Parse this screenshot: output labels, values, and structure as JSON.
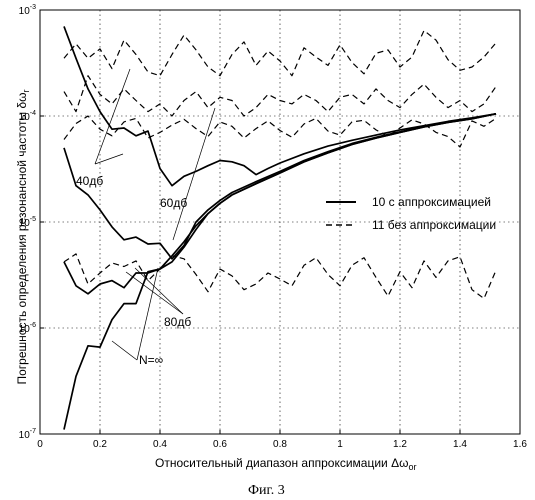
{
  "chart_data": {
    "type": "line",
    "xlabel": "Относительный диапазон аппроксимации Δω",
    "xlabel_sub": "or",
    "ylabel": "Погрешность определения резонансной частоты δω",
    "ylabel_sub": "r",
    "caption": "Фиг. 3",
    "xlim": [
      0,
      1.6
    ],
    "ylim": [
      1e-07,
      0.001
    ],
    "y_scale": "log",
    "grid": true,
    "x_ticks": [
      "0",
      "0.2",
      "0.4",
      "0.6",
      "0.8",
      "1",
      "1.2",
      "1.4",
      "1.6"
    ],
    "y_ticks": [
      {
        "base": "10",
        "exp": "-7"
      },
      {
        "base": "10",
        "exp": "-6"
      },
      {
        "base": "10",
        "exp": "-5"
      },
      {
        "base": "10",
        "exp": "-4"
      },
      {
        "base": "10",
        "exp": "-3"
      }
    ],
    "legend": [
      {
        "label": "10 с аппроксимацией",
        "style": "solid"
      },
      {
        "label": "11 без аппроксимации",
        "style": "dashed"
      }
    ],
    "legend_position": "right",
    "annotations": [
      "40дб",
      "60дб",
      "80дб",
      "N=∞"
    ],
    "series": [
      {
        "style": "solid",
        "x": [
          0.08,
          0.12,
          0.16,
          0.2,
          0.24,
          0.28,
          0.32,
          0.36,
          0.4,
          0.44,
          0.48,
          0.52,
          0.56,
          0.6,
          0.64,
          0.68,
          0.72,
          0.76,
          0.8,
          0.88,
          0.96,
          1.04,
          1.12,
          1.2,
          1.28,
          1.36,
          1.44,
          1.52
        ],
        "y": [
          0.0007,
          0.00035,
          0.00018,
          0.00011,
          7.5e-05,
          7.7e-05,
          6.5e-05,
          7.2e-05,
          3.2e-05,
          2.2e-05,
          2.7e-05,
          3e-05,
          3.4e-05,
          3.8e-05,
          3.7e-05,
          3.4e-05,
          2.8e-05,
          3.2e-05,
          3.6e-05,
          4.4e-05,
          5.2e-05,
          5.9e-05,
          6.6e-05,
          7.4e-05,
          8.1e-05,
          8.9e-05,
          9.6e-05,
          0.000105
        ]
      },
      {
        "style": "solid",
        "x": [
          0.08,
          0.12,
          0.16,
          0.2,
          0.24,
          0.28,
          0.32,
          0.36,
          0.4,
          0.44,
          0.48,
          0.52,
          0.56,
          0.6,
          0.64,
          0.72,
          0.8,
          0.88,
          0.96,
          1.04,
          1.12,
          1.2,
          1.28,
          1.36,
          1.44,
          1.52
        ],
        "y": [
          5e-05,
          2.2e-05,
          1.8e-05,
          1.3e-05,
          9e-06,
          6.8e-06,
          7.2e-06,
          6.2e-06,
          6.3e-06,
          4.5e-06,
          6e-06,
          1e-05,
          1.3e-05,
          1.6e-05,
          1.9e-05,
          2.4e-05,
          3e-05,
          3.8e-05,
          4.6e-05,
          5.5e-05,
          6.3e-05,
          7.1e-05,
          8e-05,
          8.8e-05,
          9.5e-05,
          0.000105
        ]
      },
      {
        "style": "solid",
        "x": [
          0.08,
          0.12,
          0.16,
          0.2,
          0.24,
          0.28,
          0.32,
          0.36,
          0.4,
          0.44,
          0.48,
          0.52,
          0.56,
          0.6,
          0.64,
          0.72,
          0.8,
          0.88,
          0.96,
          1.04,
          1.12,
          1.2,
          1.28,
          1.36,
          1.44,
          1.52
        ],
        "y": [
          4.2e-06,
          2.5e-06,
          2.1e-06,
          2.6e-06,
          2.8e-06,
          2.4e-06,
          3.3e-06,
          3.3e-06,
          3.6e-06,
          4.2e-06,
          5.8e-06,
          8.5e-06,
          1.2e-05,
          1.5e-05,
          1.8e-05,
          2.3e-05,
          2.9e-05,
          3.7e-05,
          4.5e-05,
          5.4e-05,
          6.2e-05,
          7e-05,
          7.9e-05,
          8.7e-05,
          9.4e-05,
          0.000105
        ]
      },
      {
        "style": "solid",
        "x": [
          0.08,
          0.12,
          0.16,
          0.2,
          0.24,
          0.28,
          0.32,
          0.36,
          0.4,
          0.44,
          0.48,
          0.52,
          0.56,
          0.6,
          0.64,
          0.72,
          0.8,
          0.88,
          0.96,
          1.04,
          1.12,
          1.2,
          1.28,
          1.36,
          1.44,
          1.52
        ],
        "y": [
          1.1e-07,
          3.5e-07,
          6.8e-07,
          6.6e-07,
          1.2e-06,
          1.7e-06,
          1.7e-06,
          3.4e-06,
          3.6e-06,
          4.8e-06,
          6.5e-06,
          9.2e-06,
          1.2e-05,
          1.5e-05,
          1.8e-05,
          2.3e-05,
          2.9e-05,
          3.7e-05,
          4.5e-05,
          5.4e-05,
          6.2e-05,
          7e-05,
          7.9e-05,
          8.7e-05,
          9.4e-05,
          0.000105
        ]
      },
      {
        "style": "dashed",
        "x": [
          0.08,
          0.12,
          0.16,
          0.2,
          0.24,
          0.28,
          0.32,
          0.36,
          0.4,
          0.44,
          0.48,
          0.52,
          0.56,
          0.6,
          0.64,
          0.68,
          0.72,
          0.76,
          0.8,
          0.84,
          0.88,
          0.92,
          0.96,
          1.0,
          1.04,
          1.08,
          1.12,
          1.16,
          1.2,
          1.24,
          1.28,
          1.32,
          1.36,
          1.4,
          1.44,
          1.48,
          1.52
        ],
        "y": [
          0.00035,
          0.00048,
          0.00035,
          0.00043,
          0.00028,
          0.00052,
          0.00038,
          0.00026,
          0.00024,
          0.00038,
          0.00058,
          0.00042,
          0.00029,
          0.00024,
          0.00038,
          0.0005,
          0.0003,
          0.00041,
          0.00033,
          0.00024,
          0.00044,
          0.00036,
          0.0003,
          0.00047,
          0.00032,
          0.00025,
          0.00039,
          0.00042,
          0.00029,
          0.00036,
          0.00064,
          0.00052,
          0.00034,
          0.00027,
          0.00029,
          0.00036,
          0.00049
        ]
      },
      {
        "style": "dashed",
        "x": [
          0.08,
          0.12,
          0.16,
          0.2,
          0.24,
          0.28,
          0.32,
          0.36,
          0.4,
          0.44,
          0.48,
          0.52,
          0.56,
          0.6,
          0.64,
          0.68,
          0.72,
          0.76,
          0.8,
          0.84,
          0.88,
          0.92,
          0.96,
          1.0,
          1.04,
          1.08,
          1.12,
          1.16,
          1.2,
          1.24,
          1.28,
          1.32,
          1.36,
          1.4,
          1.44,
          1.48,
          1.52
        ],
        "y": [
          0.00017,
          0.00011,
          0.00024,
          0.00016,
          0.00013,
          0.00018,
          0.00014,
          0.00011,
          0.00013,
          0.0001,
          0.00014,
          0.00017,
          0.00012,
          0.00015,
          0.00014,
          0.0001,
          0.00012,
          0.00016,
          0.00014,
          0.00013,
          0.00016,
          0.00014,
          0.00011,
          0.00015,
          0.00016,
          0.00013,
          0.00018,
          0.00014,
          0.00012,
          0.00016,
          0.0002,
          0.00015,
          0.00012,
          0.00014,
          0.00011,
          0.00013,
          0.00019
        ]
      },
      {
        "style": "dashed",
        "x": [
          0.08,
          0.12,
          0.16,
          0.2,
          0.24,
          0.28,
          0.32,
          0.36,
          0.4,
          0.44,
          0.48,
          0.52,
          0.56,
          0.6,
          0.64,
          0.68,
          0.72,
          0.76,
          0.8,
          0.84,
          0.88,
          0.92,
          0.96,
          1.0,
          1.04,
          1.08,
          1.12,
          1.16,
          1.2,
          1.24,
          1.28,
          1.32,
          1.36,
          1.4,
          1.44,
          1.48,
          1.52
        ],
        "y": [
          6e-05,
          8.5e-05,
          0.0001,
          7.5e-05,
          6.5e-05,
          8.8e-05,
          9.5e-05,
          6.2e-05,
          7e-05,
          8.2e-05,
          9.3e-05,
          7.6e-05,
          6.4e-05,
          8.8e-05,
          8e-05,
          6.2e-05,
          7.6e-05,
          9e-05,
          7.3e-05,
          6.3e-05,
          8.4e-05,
          9.5e-05,
          7.2e-05,
          6.6e-05,
          8.8e-05,
          9.1e-05,
          7.4e-05,
          6.4e-05,
          7.7e-05,
          9.2e-05,
          8.4e-05,
          7e-05,
          6.4e-05,
          5.1e-05,
          9e-05,
          8e-05,
          9.5e-05
        ]
      },
      {
        "style": "dashed",
        "x": [
          0.08,
          0.12,
          0.16,
          0.2,
          0.24,
          0.28,
          0.32,
          0.36,
          0.4,
          0.44,
          0.48,
          0.52,
          0.56,
          0.6,
          0.64,
          0.68,
          0.72,
          0.76,
          0.8,
          0.84,
          0.88,
          0.92,
          0.96,
          1.0,
          1.04,
          1.08,
          1.12,
          1.16,
          1.2,
          1.24,
          1.28,
          1.32,
          1.36,
          1.4,
          1.44,
          1.48,
          1.52
        ],
        "y": [
          4.2e-06,
          5e-06,
          2.6e-06,
          3.3e-06,
          4.1e-06,
          3.8e-06,
          4.3e-06,
          2.8e-06,
          3.6e-06,
          4.8e-06,
          4.5e-06,
          3.2e-06,
          2.2e-06,
          3.6e-06,
          3.1e-06,
          2.3e-06,
          2.6e-06,
          3.3e-06,
          2.9e-06,
          2.5e-06,
          3.9e-06,
          4.6e-06,
          3.2e-06,
          2.5e-06,
          3.9e-06,
          4.6e-06,
          3e-06,
          2e-06,
          3.4e-06,
          2.4e-06,
          4.3e-06,
          3e-06,
          4.3e-06,
          4.7e-06,
          2.3e-06,
          1.9e-06,
          3.5e-06
        ]
      }
    ]
  }
}
